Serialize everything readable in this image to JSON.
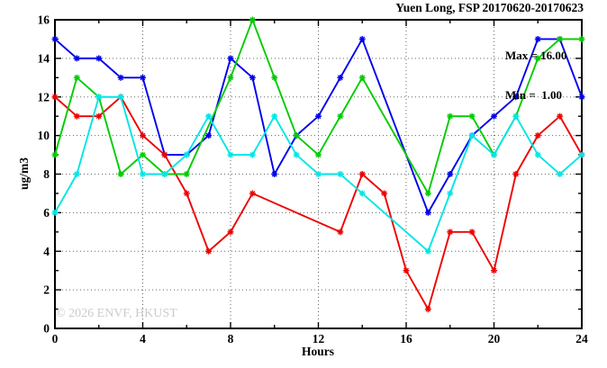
{
  "header": {
    "title": "Yuen Long, FSP 20170620-20170623"
  },
  "annotations": {
    "max_label": "Max = 16.00",
    "min_label": "Min =  1.00",
    "watermark": "© 2026 ENVF, HKUST"
  },
  "chart_data": {
    "type": "line",
    "title": "Yuen Long, FSP 20170620-20170623",
    "xlabel": "Hours",
    "ylabel": "ug/m3",
    "xlim": [
      0,
      24
    ],
    "ylim": [
      0,
      16
    ],
    "x": [
      0,
      1,
      2,
      3,
      4,
      5,
      6,
      7,
      8,
      9,
      10,
      11,
      12,
      13,
      14,
      15,
      16,
      17,
      18,
      19,
      20,
      21,
      22,
      23,
      24
    ],
    "series": [
      {
        "name": "blue",
        "color": "#0000ee",
        "values": [
          15,
          14,
          14,
          13,
          13,
          9,
          9,
          10,
          14,
          13,
          8,
          10,
          11,
          13,
          15,
          null,
          null,
          6,
          8,
          10,
          11,
          12,
          15,
          15,
          12
        ]
      },
      {
        "name": "red",
        "color": "#ee0000",
        "values": [
          12,
          11,
          11,
          12,
          10,
          9,
          7,
          4,
          5,
          7,
          null,
          null,
          null,
          5,
          8,
          7,
          3,
          1,
          5,
          5,
          3,
          8,
          10,
          11,
          9
        ]
      },
      {
        "name": "green",
        "color": "#00cc00",
        "values": [
          9,
          13,
          12,
          8,
          9,
          8,
          8,
          null,
          13,
          16,
          13,
          10,
          9,
          11,
          13,
          null,
          null,
          7,
          11,
          11,
          9,
          11,
          14,
          15,
          15
        ]
      },
      {
        "name": "cyan",
        "color": "#00e5e5",
        "values": [
          6,
          8,
          12,
          12,
          8,
          8,
          9,
          11,
          9,
          9,
          11,
          9,
          8,
          8,
          7,
          null,
          null,
          4,
          7,
          10,
          9,
          11,
          9,
          8,
          9
        ]
      }
    ],
    "xtick_labels": [
      0,
      4,
      8,
      12,
      16,
      20,
      24
    ],
    "xtick_minor_step": 2,
    "ytick_labels": [
      0,
      2,
      4,
      6,
      8,
      10,
      12,
      14,
      16
    ],
    "ytick_minor_step": 1,
    "grid_x": [
      4,
      8,
      12,
      16,
      20
    ],
    "grid_y": [
      2,
      4,
      6,
      8,
      10,
      12,
      14
    ],
    "grid": true,
    "legend": "none",
    "stats": {
      "max": 16.0,
      "min": 1.0
    }
  }
}
